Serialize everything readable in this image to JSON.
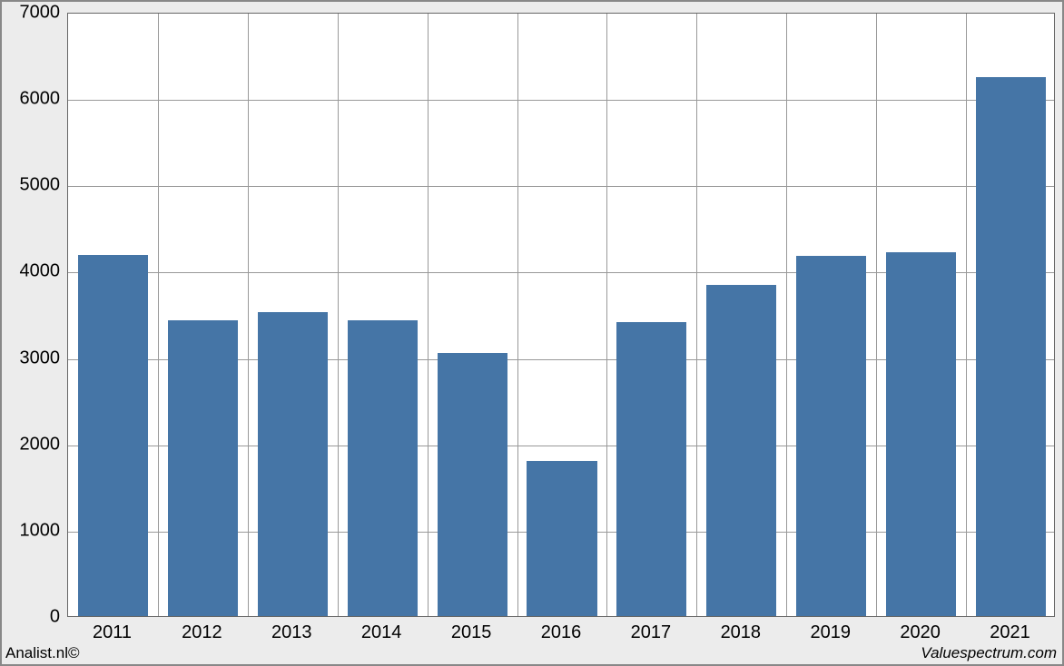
{
  "chart": {
    "type": "bar",
    "categories": [
      "2011",
      "2012",
      "2013",
      "2014",
      "2015",
      "2016",
      "2017",
      "2018",
      "2019",
      "2020",
      "2021"
    ],
    "values": [
      4180,
      3430,
      3520,
      3430,
      3050,
      1800,
      3410,
      3840,
      4170,
      4210,
      6240
    ],
    "bar_color": "#4575a6",
    "background_color": "#ffffff",
    "outer_background": "#ececec",
    "grid_color": "#999999",
    "axis_color": "#666666",
    "ylim": [
      0,
      7000
    ],
    "ytick_step": 1000,
    "yticks": [
      0,
      1000,
      2000,
      3000,
      4000,
      5000,
      6000,
      7000
    ],
    "bar_width_ratio": 0.78,
    "tick_fontsize": 20
  },
  "footer": {
    "left": "Analist.nl©",
    "right": "Valuespectrum.com"
  }
}
